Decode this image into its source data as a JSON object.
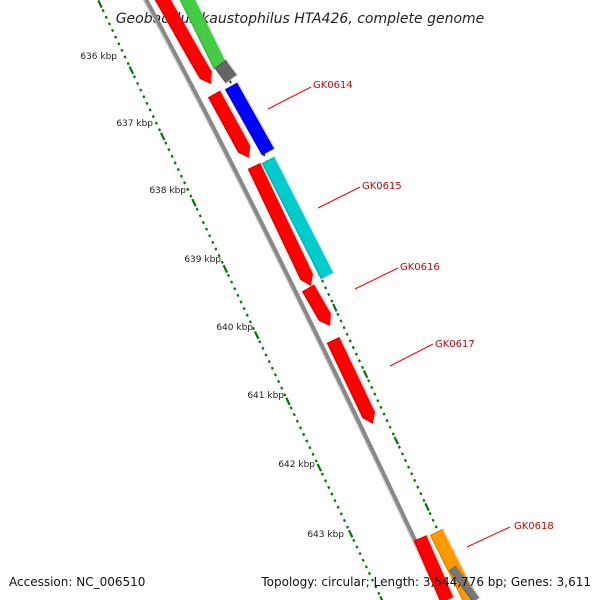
{
  "title": "Geobacillus kaustophilus HTA426, complete genome",
  "footer": {
    "accession": "Accession: NC_006510",
    "topology": "Topology: circular; Length: 3,544,776 bp; Genes: 3,611"
  },
  "ticks": [
    "636 kbp",
    "637 kbp",
    "638 kbp",
    "639 kbp",
    "640 kbp",
    "641 kbp",
    "642 kbp",
    "643 kbp"
  ],
  "genes": [
    {
      "label": "GK0614",
      "color": "#0000ff"
    },
    {
      "label": "GK0615",
      "color": "#00cccc"
    },
    {
      "label": "GK0616",
      "color": "#ff0000"
    },
    {
      "label": "GK0617",
      "color": "#ff0000"
    },
    {
      "label": "GK0618",
      "color": "#ff9900"
    }
  ],
  "colors": {
    "backbone": "#888888",
    "cds": "#ff0000",
    "gene_a": "#44cc44",
    "tick": "#007700",
    "label_line": "#ff0000"
  }
}
